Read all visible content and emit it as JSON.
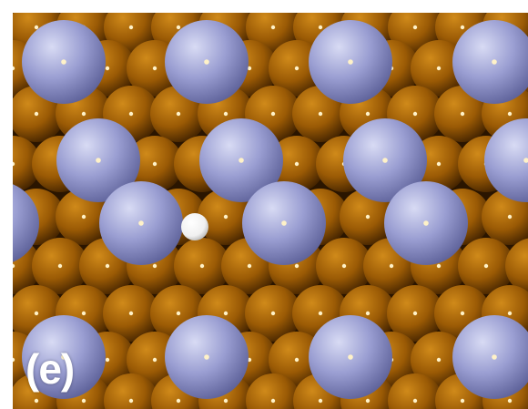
{
  "figure": {
    "panel_label": "(e)"
  },
  "colors": {
    "substrate_atom": "#9a5a05",
    "substrate_atom_light": "#d08a1a",
    "substrate_atom_dark": "#3e2000",
    "adsorbate_atom": "#9a9ed2",
    "adsorbate_atom_light": "#d8dbf4",
    "adsorbate_atom_dark": "#5a5e96",
    "highlight_atom": "#ffffff",
    "background": "#ffffff"
  }
}
